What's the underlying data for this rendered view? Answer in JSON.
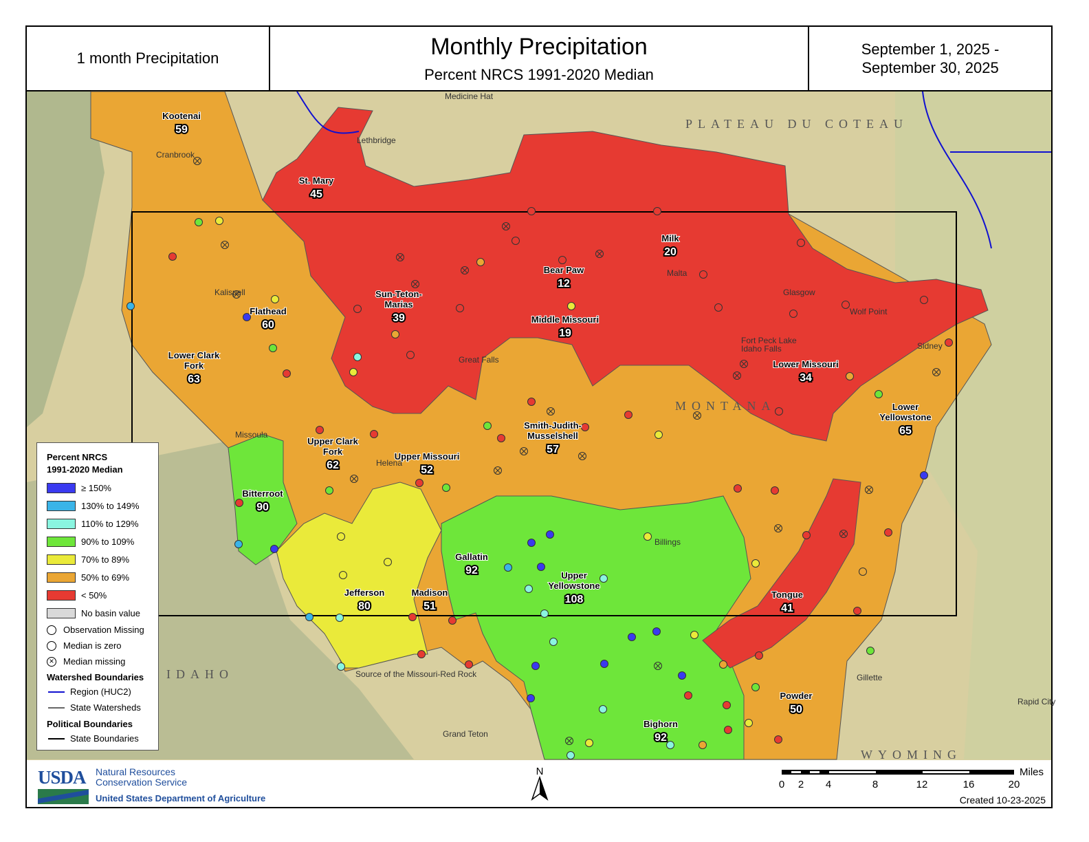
{
  "header": {
    "left": "1 month Precipitation",
    "title": "Monthly Precipitation",
    "subtitle": "Percent NRCS 1991-2020 Median",
    "date_line1": "September 1, 2025 -",
    "date_line2": "September 30, 2025"
  },
  "colors": {
    "ge150": "#3a3af0",
    "c130": "#3ab4e8",
    "c110": "#8af5e0",
    "c90": "#6ee63a",
    "c70": "#eaea3a",
    "c50": "#eaa634",
    "lt50": "#e63a32",
    "none": "#d9d9d9"
  },
  "basins": [
    {
      "name": "Kootenai",
      "value": "59",
      "cat": "c50"
    },
    {
      "name": "St. Mary",
      "value": "45",
      "cat": "lt50"
    },
    {
      "name": "Milk",
      "value": "20",
      "cat": "lt50"
    },
    {
      "name": "Bear Paw",
      "value": "12",
      "cat": "lt50"
    },
    {
      "name": "Sun-Teton-Marias",
      "value": "39",
      "cat": "lt50"
    },
    {
      "name": "Middle Missouri",
      "value": "19",
      "cat": "lt50"
    },
    {
      "name": "Lower Missouri",
      "value": "34",
      "cat": "lt50"
    },
    {
      "name": "Flathead",
      "value": "60",
      "cat": "c50"
    },
    {
      "name": "Lower Clark Fork",
      "value": "63",
      "cat": "c50"
    },
    {
      "name": "Upper Clark Fork",
      "value": "62",
      "cat": "c50"
    },
    {
      "name": "Upper Missouri",
      "value": "52",
      "cat": "c50"
    },
    {
      "name": "Smith-Judith-Musselshell",
      "value": "57",
      "cat": "c50"
    },
    {
      "name": "Lower Yellowstone",
      "value": "65",
      "cat": "c50"
    },
    {
      "name": "Bitterroot",
      "value": "90",
      "cat": "c90"
    },
    {
      "name": "Gallatin",
      "value": "92",
      "cat": "c90"
    },
    {
      "name": "Upper Yellowstone",
      "value": "108",
      "cat": "c90"
    },
    {
      "name": "Jefferson",
      "value": "80",
      "cat": "c70"
    },
    {
      "name": "Madison",
      "value": "51",
      "cat": "c50"
    },
    {
      "name": "Tongue",
      "value": "41",
      "cat": "lt50"
    },
    {
      "name": "Powder",
      "value": "50",
      "cat": "c50"
    },
    {
      "name": "Bighorn",
      "value": "92",
      "cat": "c90"
    }
  ],
  "places": [
    "Medicine Hat",
    "Lethbridge",
    "Cranbrook",
    "Kalispell",
    "Missoula",
    "Helena",
    "Great Falls",
    "Malta",
    "Glasgow",
    "Wolf Point",
    "Sidney",
    "Billings",
    "Gillette",
    "Rapid City",
    "Idaho Falls",
    "Grand Teton",
    "Fort Peck Lake",
    "Source of the Missouri-Red Rock"
  ],
  "regions": [
    "MONTANA",
    "IDAHO",
    "WYOMING",
    "PLATEAU DU COTEAU"
  ],
  "legend": {
    "title1": "Percent NRCS",
    "title2": "1991-2020 Median",
    "classes": [
      {
        "label": "≥ 150%",
        "cat": "ge150"
      },
      {
        "label": "130% to 149%",
        "cat": "c130"
      },
      {
        "label": "110% to 129%",
        "cat": "c110"
      },
      {
        "label": "90% to 109%",
        "cat": "c90"
      },
      {
        "label": "70% to 89%",
        "cat": "c70"
      },
      {
        "label": "50% to 69%",
        "cat": "c50"
      },
      {
        "label": "< 50%",
        "cat": "lt50"
      },
      {
        "label": "No basin value",
        "cat": "none"
      }
    ],
    "symbols": [
      "Observation Missing",
      "Median is zero",
      "Median missing"
    ],
    "watershed_title": "Watershed Boundaries",
    "region_huc2": "Region (HUC2)",
    "state_watersheds": "State Watersheds",
    "political_title": "Political Boundaries",
    "state_boundaries": "State Boundaries"
  },
  "footer": {
    "usda": "USDA",
    "agency1": "Natural Resources",
    "agency2": "Conservation Service",
    "dept": "United States Department of Agriculture",
    "north": "N",
    "scale_unit": "Miles",
    "scale_ticks": [
      "0",
      "2",
      "4",
      "8",
      "12",
      "16",
      "20"
    ],
    "created": "Created 10-23-2025"
  }
}
